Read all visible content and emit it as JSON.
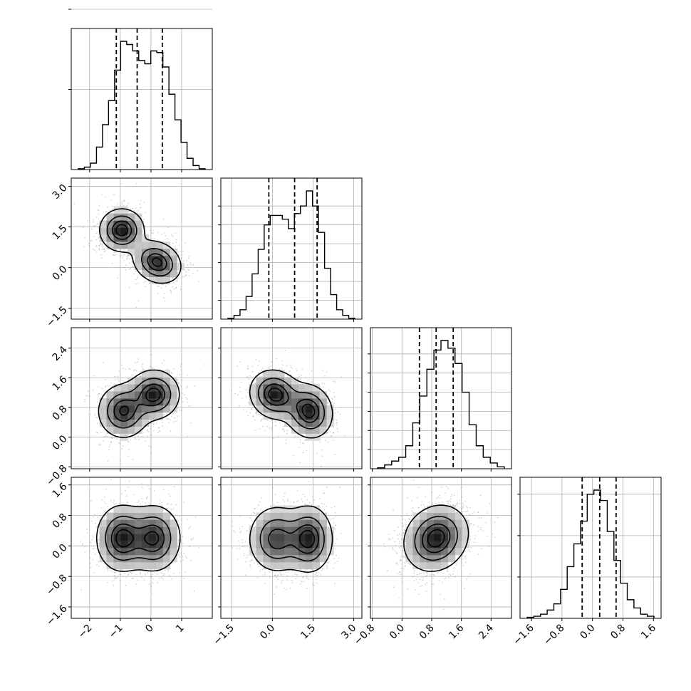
{
  "chart_data": {
    "type": "corner",
    "n_params": 4,
    "parameters": [
      {
        "range": [
          -2.6,
          2.0
        ],
        "ticks": [
          -2,
          -1,
          0,
          1
        ],
        "tick_labels": [
          "−2",
          "−1",
          "0",
          "1"
        ],
        "quantiles": [
          -1.13,
          -0.45,
          0.37
        ],
        "hist": [
          0.5,
          1.5,
          4,
          14,
          28,
          43,
          62,
          80,
          78,
          74,
          68,
          66,
          74,
          73,
          64,
          47,
          31,
          17,
          7,
          2.5,
          0.5
        ],
        "hist_yticks": [
          50,
          100
        ]
      },
      {
        "range": [
          -1.9,
          3.3
        ],
        "ticks": [
          -1.5,
          0.0,
          1.5,
          3.0
        ],
        "tick_labels": [
          "−1.5",
          "0.0",
          "1.5",
          "3.0"
        ],
        "quantiles": [
          -0.13,
          0.82,
          1.65
        ],
        "hist": [
          0.5,
          2,
          5,
          12,
          24,
          37,
          50,
          55,
          55,
          53,
          48,
          56,
          60,
          68,
          60,
          46,
          27,
          13,
          5,
          2,
          0.5
        ],
        "hist_yticks": [
          10,
          20,
          30,
          40,
          50,
          60
        ]
      },
      {
        "range": [
          -0.85,
          2.95
        ],
        "ticks": [
          -0.8,
          0.0,
          0.8,
          1.6,
          2.4
        ],
        "tick_labels": [
          "−0.8",
          "0.0",
          "0.8",
          "1.6",
          "2.4"
        ],
        "quantiles": [
          0.47,
          0.92,
          1.38
        ],
        "hist": [
          0.5,
          2,
          4,
          6,
          12,
          24,
          38,
          52,
          62,
          67,
          63,
          55,
          40,
          23,
          12,
          6,
          3,
          1
        ],
        "hist_yticks": [
          10,
          20,
          30,
          40,
          50,
          60
        ]
      },
      {
        "range": [
          -1.9,
          1.8
        ],
        "ticks": [
          -1.6,
          -0.8,
          0.0,
          0.8,
          1.6
        ],
        "tick_labels": [
          "−1.6",
          "−0.8",
          "0.0",
          "0.8",
          "1.6"
        ],
        "quantiles": [
          -0.27,
          0.19,
          0.62
        ],
        "hist": [
          0.5,
          1,
          2,
          4,
          7,
          14,
          25,
          36,
          47,
          60,
          62,
          57,
          42,
          28,
          17,
          9,
          5,
          2,
          1
        ],
        "hist_yticks": [
          20,
          40,
          60
        ]
      }
    ],
    "pairs": [
      {
        "row": 1,
        "col": 0,
        "modes": [
          {
            "mx": -0.95,
            "my": 1.38,
            "sx": 0.35,
            "sy": 0.38,
            "rho": 0.0,
            "w": 0.5
          },
          {
            "mx": 0.2,
            "my": 0.2,
            "sx": 0.38,
            "sy": 0.38,
            "rho": -0.2,
            "w": 0.5
          }
        ]
      },
      {
        "row": 2,
        "col": 0,
        "modes": [
          {
            "mx": -0.9,
            "my": 0.7,
            "sx": 0.4,
            "sy": 0.35,
            "rho": 0.0,
            "w": 0.5
          },
          {
            "mx": 0.1,
            "my": 1.15,
            "sx": 0.4,
            "sy": 0.32,
            "rho": 0.0,
            "w": 0.5
          }
        ]
      },
      {
        "row": 2,
        "col": 1,
        "modes": [
          {
            "mx": 0.1,
            "my": 1.15,
            "sx": 0.45,
            "sy": 0.32,
            "rho": -0.1,
            "w": 0.5
          },
          {
            "mx": 1.35,
            "my": 0.7,
            "sx": 0.42,
            "sy": 0.35,
            "rho": -0.1,
            "w": 0.5
          }
        ]
      },
      {
        "row": 3,
        "col": 0,
        "modes": [
          {
            "mx": -0.95,
            "my": 0.2,
            "sx": 0.4,
            "sy": 0.42,
            "rho": 0.0,
            "w": 0.5
          },
          {
            "mx": 0.1,
            "my": 0.2,
            "sx": 0.42,
            "sy": 0.42,
            "rho": 0.0,
            "w": 0.5
          }
        ]
      },
      {
        "row": 3,
        "col": 1,
        "modes": [
          {
            "mx": 0.15,
            "my": 0.18,
            "sx": 0.5,
            "sy": 0.42,
            "rho": 0.0,
            "w": 0.5
          },
          {
            "mx": 1.35,
            "my": 0.18,
            "sx": 0.42,
            "sy": 0.42,
            "rho": 0.0,
            "w": 0.5
          }
        ]
      },
      {
        "row": 3,
        "col": 2,
        "modes": [
          {
            "mx": 0.92,
            "my": 0.2,
            "sx": 0.42,
            "sy": 0.42,
            "rho": 0.15,
            "w": 1.0
          }
        ]
      }
    ],
    "contour_levels": [
      0.118,
      0.393,
      0.675,
      0.865
    ],
    "grid": true,
    "style": {
      "line_color": "#000000",
      "grid_color": "#b0b0b0",
      "scatter_color": "#808080"
    }
  }
}
